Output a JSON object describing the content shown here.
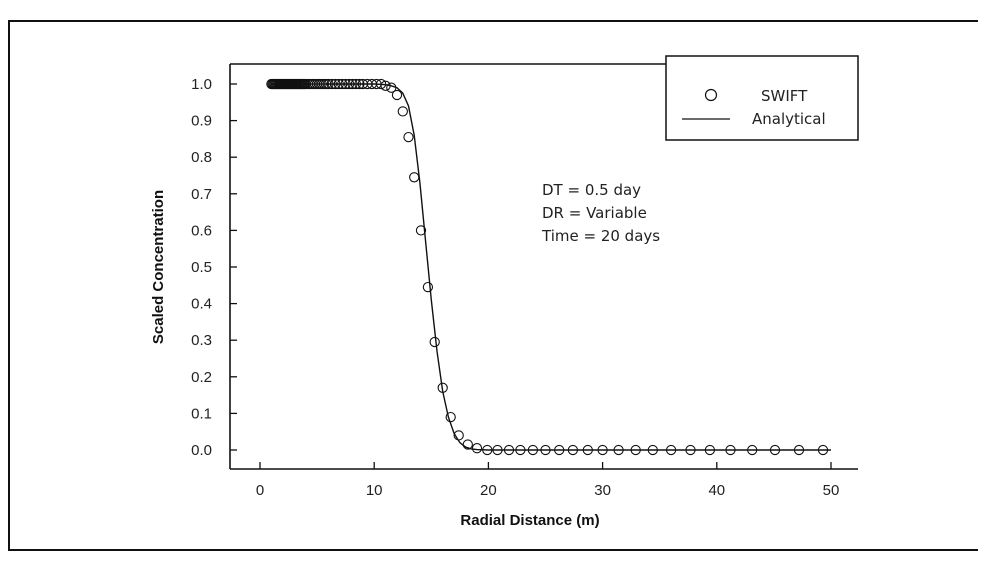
{
  "chart_data": {
    "type": "scatter",
    "xlabel": "Radial Distance (m)",
    "ylabel": "Scaled Concentration",
    "xlim": [
      -2,
      50
    ],
    "ylim": [
      -0.05,
      1.0
    ],
    "x_ticks": [
      "0",
      "10",
      "20",
      "30",
      "40",
      "50"
    ],
    "y_ticks": [
      "0.0",
      "0.1",
      "0.2",
      "0.3",
      "0.4",
      "0.5",
      "0.6",
      "0.7",
      "0.8",
      "0.9",
      "1.0"
    ],
    "legend_position": "top-right",
    "grid": false,
    "series": [
      {
        "name": "SWIFT",
        "style": "circle-markers",
        "x": [
          1.0,
          1.1,
          1.2,
          1.3,
          1.4,
          1.5,
          1.6,
          1.7,
          1.8,
          1.9,
          2.0,
          2.1,
          2.2,
          2.3,
          2.4,
          2.5,
          2.6,
          2.7,
          2.8,
          2.9,
          3.0,
          3.1,
          3.2,
          3.3,
          3.4,
          3.5,
          3.6,
          3.7,
          3.8,
          3.9,
          4.0,
          4.2,
          4.4,
          4.6,
          4.8,
          5.0,
          5.2,
          5.4,
          5.6,
          5.8,
          6.0,
          6.3,
          6.6,
          6.9,
          7.2,
          7.5,
          7.8,
          8.1,
          8.4,
          8.7,
          9.0,
          9.4,
          9.8,
          10.2,
          10.6,
          11.0,
          11.5,
          12.0,
          12.5,
          13.0,
          13.5,
          14.1,
          14.7,
          15.3,
          16.0,
          16.7,
          17.4,
          18.2,
          19.0,
          19.9,
          20.8,
          21.8,
          22.8,
          23.9,
          25.0,
          26.2,
          27.4,
          28.7,
          30.0,
          31.4,
          32.9,
          34.4,
          36.0,
          37.7,
          39.4,
          41.2,
          43.1,
          45.1,
          47.2,
          49.3
        ],
        "y": [
          1.0,
          1.0,
          1.0,
          1.0,
          1.0,
          1.0,
          1.0,
          1.0,
          1.0,
          1.0,
          1.0,
          1.0,
          1.0,
          1.0,
          1.0,
          1.0,
          1.0,
          1.0,
          1.0,
          1.0,
          1.0,
          1.0,
          1.0,
          1.0,
          1.0,
          1.0,
          1.0,
          1.0,
          1.0,
          1.0,
          1.0,
          1.0,
          1.0,
          1.0,
          1.0,
          1.0,
          1.0,
          1.0,
          1.0,
          1.0,
          1.0,
          1.0,
          1.0,
          1.0,
          1.0,
          1.0,
          1.0,
          1.0,
          1.0,
          1.0,
          1.0,
          1.0,
          1.0,
          1.0,
          1.0,
          0.995,
          0.99,
          0.97,
          0.925,
          0.855,
          0.745,
          0.6,
          0.445,
          0.295,
          0.17,
          0.09,
          0.04,
          0.015,
          0.005,
          0.0,
          0.0,
          0.0,
          0.0,
          0.0,
          0.0,
          0.0,
          0.0,
          0.0,
          0.0,
          0.0,
          0.0,
          0.0,
          0.0,
          0.0,
          0.0,
          0.0,
          0.0,
          0.0,
          0.0,
          0.0
        ]
      },
      {
        "name": "Analytical",
        "style": "solid-line",
        "x": [
          1,
          3,
          5,
          7,
          9,
          10,
          11,
          11.5,
          12,
          12.5,
          13,
          13.5,
          14,
          14.5,
          15,
          15.5,
          16,
          16.5,
          17,
          17.5,
          18,
          18.5,
          19,
          20,
          22,
          25,
          30,
          35,
          40,
          45,
          50
        ],
        "y": [
          1.0,
          1.0,
          1.0,
          1.0,
          1.0,
          1.0,
          0.998,
          0.995,
          0.99,
          0.975,
          0.94,
          0.86,
          0.73,
          0.57,
          0.41,
          0.27,
          0.16,
          0.09,
          0.045,
          0.02,
          0.008,
          0.003,
          0.001,
          0.0,
          0.0,
          0.0,
          0.0,
          0.0,
          0.0,
          0.0,
          0.0
        ]
      }
    ],
    "annotations": [
      "DT = 0.5 day",
      "DR = Variable",
      "Time = 20 days"
    ]
  }
}
